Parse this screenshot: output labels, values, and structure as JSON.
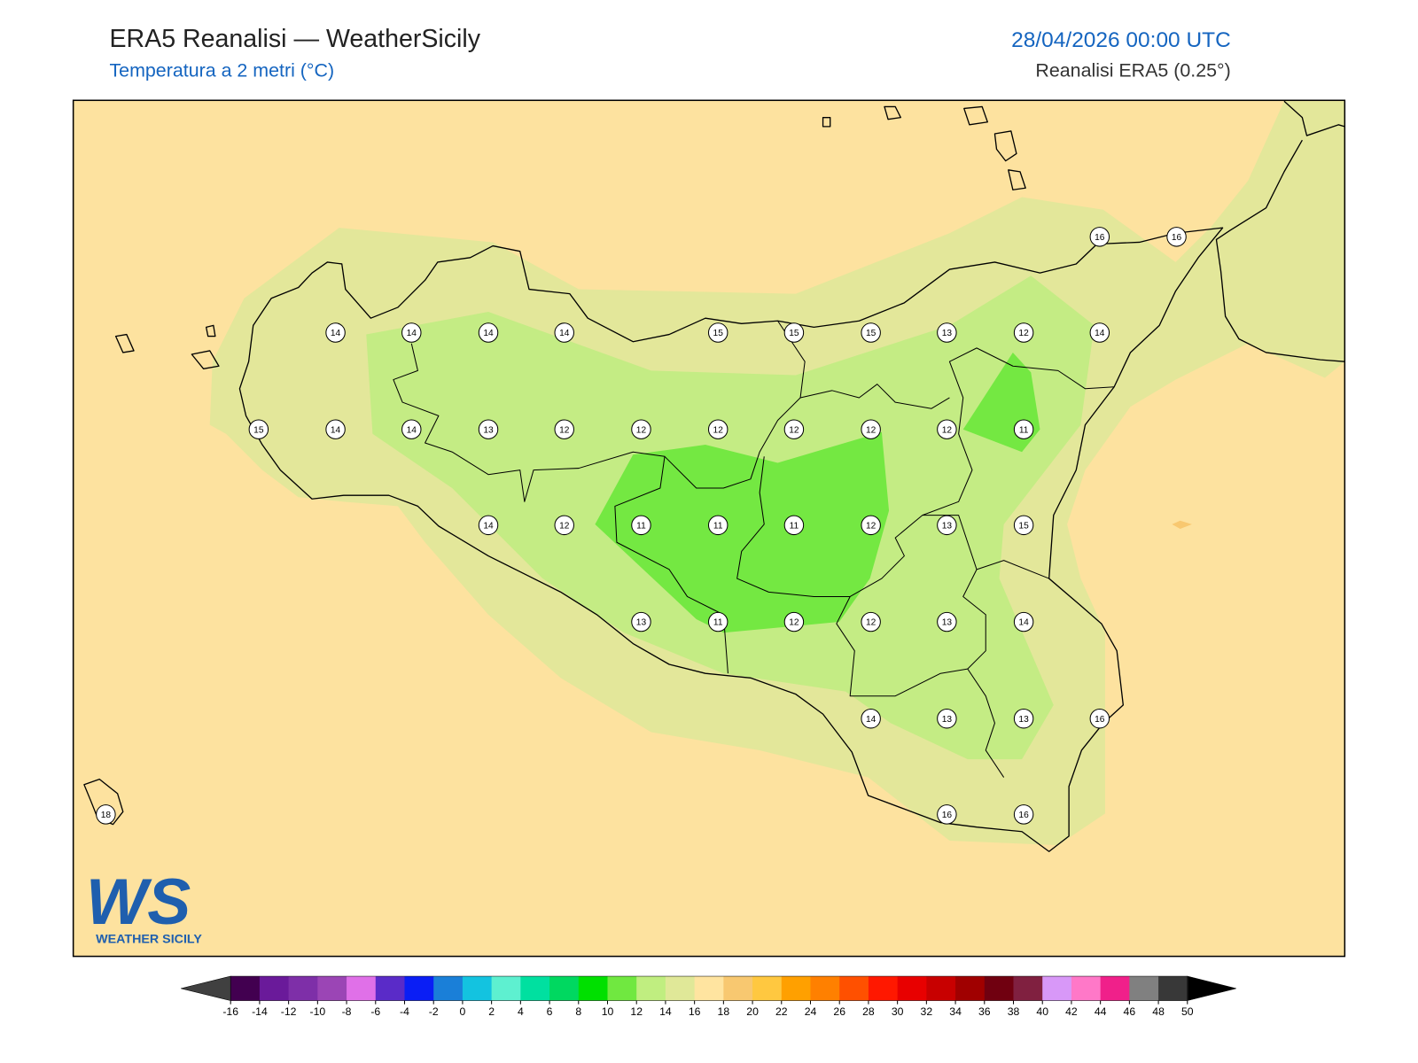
{
  "header": {
    "title": "ERA5 Reanalisi — WeatherSicily",
    "subtitle": "Temperatura a 2 metri (°C)",
    "datetime": "28/04/2026 00:00 UTC",
    "source": "Reanalisi ERA5 (0.25°)"
  },
  "stations": [
    14,
    14,
    14,
    14,
    15,
    15,
    15,
    13,
    12,
    14,
    16,
    16,
    15,
    14,
    14,
    13,
    12,
    12,
    12,
    12,
    12,
    12,
    11,
    14,
    12,
    11,
    11,
    11,
    12,
    13,
    15,
    13,
    11,
    12,
    12,
    13,
    14,
    14,
    13,
    13,
    16,
    18,
    16,
    16
  ],
  "colorbar": {
    "ticks": [
      -16,
      -14,
      -12,
      -10,
      -8,
      -6,
      -4,
      -2,
      0,
      2,
      4,
      6,
      8,
      10,
      12,
      14,
      16,
      18,
      20,
      22,
      24,
      26,
      28,
      30,
      32,
      34,
      36,
      38,
      40,
      42,
      44,
      46,
      48,
      50
    ],
    "colors": [
      "#420050",
      "#6a1a9a",
      "#7e2fa8",
      "#9b45b5",
      "#e070e8",
      "#5a2bc8",
      "#0a1ef5",
      "#1a7fd8",
      "#13c3e0",
      "#5ef0d0",
      "#00e0a0",
      "#00d860",
      "#00e000",
      "#70e840",
      "#c0ee80",
      "#e0e898",
      "#ffe4a0",
      "#f8c870",
      "#ffc840",
      "#ffa000",
      "#ff8000",
      "#ff5000",
      "#ff1800",
      "#e80000",
      "#c80000",
      "#a00000",
      "#700010",
      "#802040",
      "#d898f8",
      "#ff78c8",
      "#f0208a",
      "#808080",
      "#383838"
    ],
    "under": "#404040",
    "over": "#000000"
  },
  "logo": {
    "initials": "WS",
    "text": "WEATHER SICILY"
  }
}
